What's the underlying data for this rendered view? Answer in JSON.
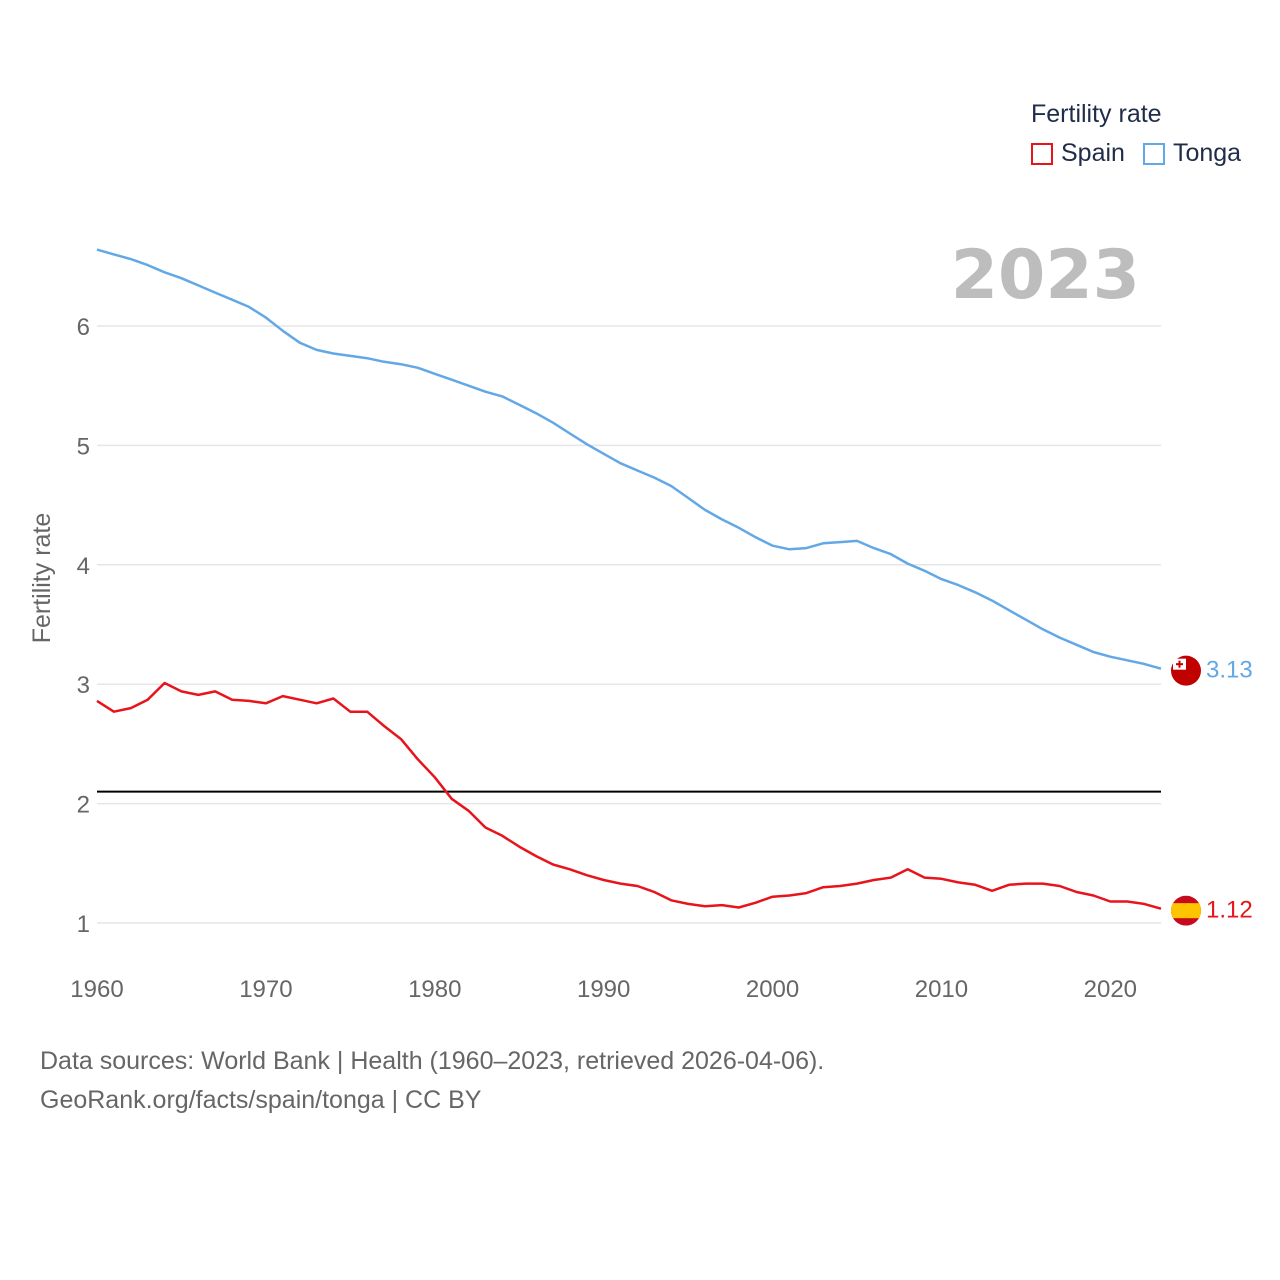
{
  "legend": {
    "title": "Fertility rate",
    "items": [
      {
        "label": "Spain",
        "color": "#e8141c"
      },
      {
        "label": "Tonga",
        "color": "#63a8e6"
      }
    ]
  },
  "year_display": "2023",
  "footer": {
    "line1": "Data sources: World Bank | Health (1960–2023, retrieved 2026-04-06).",
    "line2": "GeoRank.org/facts/spain/tonga | CC BY"
  },
  "chart_data": {
    "type": "line",
    "title": "Fertility rate",
    "xlabel": "",
    "ylabel": "Fertility rate",
    "xlim": [
      1960,
      2023
    ],
    "ylim": [
      0.7,
      6.85
    ],
    "x_ticks": [
      1960,
      1970,
      1980,
      1990,
      2000,
      2010,
      2020
    ],
    "y_ticks": [
      1,
      2,
      3,
      4,
      5,
      6
    ],
    "grid": true,
    "reference_line": {
      "y": 2.1,
      "color": "#000000"
    },
    "x": [
      1960,
      1961,
      1962,
      1963,
      1964,
      1965,
      1966,
      1967,
      1968,
      1969,
      1970,
      1971,
      1972,
      1973,
      1974,
      1975,
      1976,
      1977,
      1978,
      1979,
      1980,
      1981,
      1982,
      1983,
      1984,
      1985,
      1986,
      1987,
      1988,
      1989,
      1990,
      1991,
      1992,
      1993,
      1994,
      1995,
      1996,
      1997,
      1998,
      1999,
      2000,
      2001,
      2002,
      2003,
      2004,
      2005,
      2006,
      2007,
      2008,
      2009,
      2010,
      2011,
      2012,
      2013,
      2014,
      2015,
      2016,
      2017,
      2018,
      2019,
      2020,
      2021,
      2022,
      2023
    ],
    "series": [
      {
        "name": "Spain",
        "color": "#e8141c",
        "end_label": "1.12",
        "values": [
          2.86,
          2.77,
          2.8,
          2.87,
          3.01,
          2.94,
          2.91,
          2.94,
          2.87,
          2.86,
          2.84,
          2.9,
          2.87,
          2.84,
          2.88,
          2.77,
          2.77,
          2.65,
          2.54,
          2.37,
          2.22,
          2.04,
          1.94,
          1.8,
          1.73,
          1.64,
          1.56,
          1.49,
          1.45,
          1.4,
          1.36,
          1.33,
          1.31,
          1.26,
          1.19,
          1.16,
          1.14,
          1.15,
          1.13,
          1.17,
          1.22,
          1.23,
          1.25,
          1.3,
          1.31,
          1.33,
          1.36,
          1.38,
          1.45,
          1.38,
          1.37,
          1.34,
          1.32,
          1.27,
          1.32,
          1.33,
          1.33,
          1.31,
          1.26,
          1.23,
          1.18,
          1.18,
          1.16,
          1.12
        ]
      },
      {
        "name": "Tonga",
        "color": "#63a8e6",
        "end_label": "3.13",
        "values": [
          6.64,
          6.6,
          6.56,
          6.51,
          6.45,
          6.4,
          6.34,
          6.28,
          6.22,
          6.16,
          6.07,
          5.96,
          5.86,
          5.8,
          5.77,
          5.75,
          5.73,
          5.7,
          5.68,
          5.65,
          5.6,
          5.55,
          5.5,
          5.45,
          5.41,
          5.34,
          5.27,
          5.19,
          5.1,
          5.01,
          4.93,
          4.85,
          4.79,
          4.73,
          4.66,
          4.56,
          4.46,
          4.38,
          4.31,
          4.23,
          4.16,
          4.13,
          4.14,
          4.18,
          4.19,
          4.2,
          4.14,
          4.09,
          4.01,
          3.95,
          3.88,
          3.83,
          3.77,
          3.7,
          3.62,
          3.54,
          3.46,
          3.39,
          3.33,
          3.27,
          3.23,
          3.2,
          3.17,
          3.13
        ]
      }
    ]
  }
}
